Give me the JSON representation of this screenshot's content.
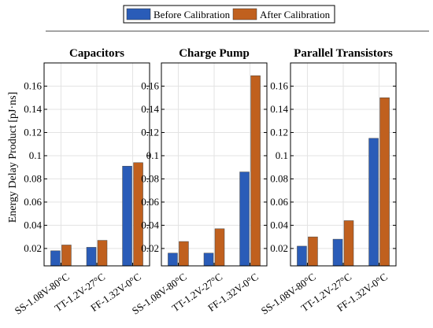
{
  "chart_data": {
    "type": "bar",
    "ylabel": "Energy Delay Product [pJ·ns]",
    "ylim": [
      0.005,
      0.18
    ],
    "yticks": [
      0.02,
      0.04,
      0.06,
      0.08,
      0.1,
      0.12,
      0.14,
      0.16
    ],
    "ytick_labels": [
      "0.02",
      "0.04",
      "0.06",
      "0.08",
      "0.1",
      "0.12",
      "0.14",
      "0.16"
    ],
    "grid": true,
    "legend_position": "top-right",
    "legend": [
      {
        "name": "Before Calibration",
        "color": "#2a5cb8"
      },
      {
        "name": "After Calibration",
        "color": "#c0601e"
      }
    ],
    "categories": [
      "SS-1.08V-80°C",
      "TT-1.2V-27°C",
      "FF-1.32V-0°C"
    ],
    "panels": [
      {
        "title": "Capacitors",
        "series": [
          {
            "name": "Before Calibration",
            "values": [
              0.018,
              0.021,
              0.091
            ]
          },
          {
            "name": "After Calibration",
            "values": [
              0.023,
              0.027,
              0.094
            ]
          }
        ]
      },
      {
        "title": "Charge Pump",
        "series": [
          {
            "name": "Before Calibration",
            "values": [
              0.016,
              0.016,
              0.086
            ]
          },
          {
            "name": "After Calibration",
            "values": [
              0.026,
              0.037,
              0.169
            ]
          }
        ]
      },
      {
        "title": "Parallel Transistors",
        "series": [
          {
            "name": "Before Calibration",
            "values": [
              0.022,
              0.028,
              0.115
            ]
          },
          {
            "name": "After Calibration",
            "values": [
              0.03,
              0.044,
              0.15
            ]
          }
        ]
      }
    ]
  }
}
